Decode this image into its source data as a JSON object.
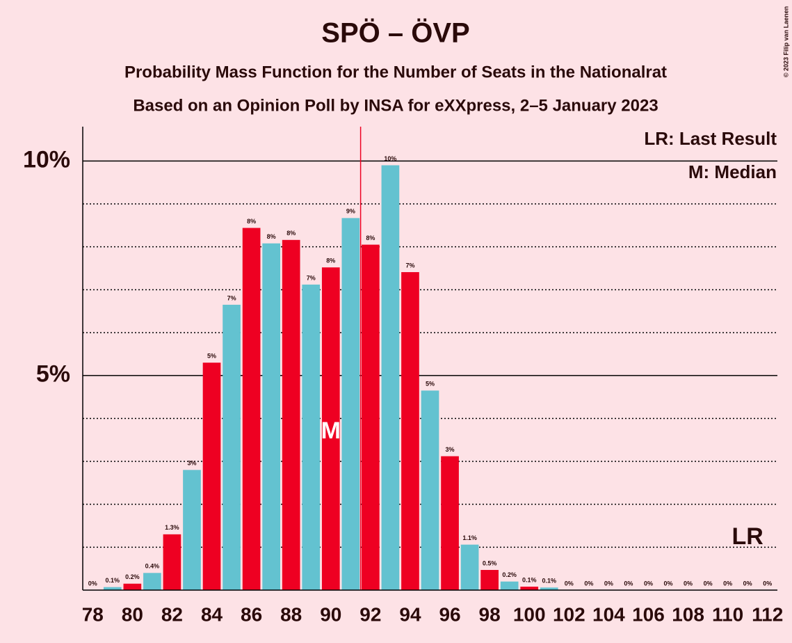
{
  "chart_data": {
    "type": "bar",
    "title": "SPÖ – ÖVP",
    "subtitle": "Probability Mass Function for the Number of Seats in the Nationalrat",
    "subtitle2": "Based on an Opinion Poll by INSA for eXXpress, 2–5 January 2023",
    "copyright": "© 2023 Filip van Laenen",
    "legend_lr": "LR: Last Result",
    "legend_median": "M: Median",
    "median_label": "M",
    "last_result_label": "LR",
    "median": 90,
    "last_result": 111,
    "majority": 92,
    "majority_color": "#ee0022",
    "categories": [
      78,
      null,
      80,
      null,
      82,
      null,
      84,
      null,
      86,
      null,
      88,
      null,
      90,
      null,
      92,
      null,
      94,
      null,
      96,
      null,
      98,
      null,
      100,
      null,
      102,
      null,
      104,
      null,
      106,
      null,
      108,
      null,
      110,
      null,
      112
    ],
    "seats": [
      78,
      79,
      80,
      81,
      82,
      83,
      84,
      85,
      86,
      87,
      88,
      89,
      90,
      91,
      92,
      93,
      94,
      95,
      96,
      97,
      98,
      99,
      100,
      101,
      102,
      103,
      104,
      105,
      106,
      107,
      108,
      109,
      110,
      111,
      112
    ],
    "values": [
      0,
      0.07,
      0.15,
      0.4,
      1.3,
      2.8,
      5.3,
      6.65,
      8.44,
      8.08,
      8.16,
      7.12,
      7.52,
      8.67,
      8.05,
      9.9,
      7.41,
      4.65,
      3.12,
      1.06,
      0.47,
      0.2,
      0.08,
      0.06,
      0,
      0,
      0,
      0,
      0,
      0,
      0,
      0,
      0,
      0,
      0
    ],
    "value_labels": [
      "0%",
      "0.1%",
      "0.2%",
      "0.4%",
      "1.3%",
      "3%",
      "5%",
      "7%",
      "8%",
      "8%",
      "8%",
      "7%",
      "8%",
      "9%",
      "8%",
      "10%",
      "7%",
      "5%",
      "3%",
      "1.1%",
      "0.5%",
      "0.2%",
      "0.1%",
      "0.1%",
      "0%",
      "0%",
      "0%",
      "0%",
      "0%",
      "0%",
      "0%",
      "0%",
      "0%",
      "0%",
      "0%"
    ],
    "colors": [
      "#ee0022",
      "#63c2d0",
      "#ee0022",
      "#63c2d0",
      "#ee0022",
      "#63c2d0",
      "#ee0022",
      "#63c2d0",
      "#ee0022",
      "#63c2d0",
      "#ee0022",
      "#63c2d0",
      "#ee0022",
      "#63c2d0",
      "#ee0022",
      "#63c2d0",
      "#ee0022",
      "#63c2d0",
      "#ee0022",
      "#63c2d0",
      "#ee0022",
      "#63c2d0",
      "#ee0022",
      "#63c2d0",
      "#ee0022",
      "#63c2d0",
      "#ee0022",
      "#63c2d0",
      "#ee0022",
      "#63c2d0",
      "#ee0022",
      "#63c2d0",
      "#ee0022",
      "#63c2d0",
      "#ee0022"
    ],
    "ylim": [
      0,
      10.8
    ],
    "yticks": [
      {
        "value": 5,
        "label": "5%"
      },
      {
        "value": 10,
        "label": "10%"
      }
    ],
    "minor_grid": [
      1,
      2,
      3,
      4,
      6,
      7,
      8,
      9
    ]
  }
}
